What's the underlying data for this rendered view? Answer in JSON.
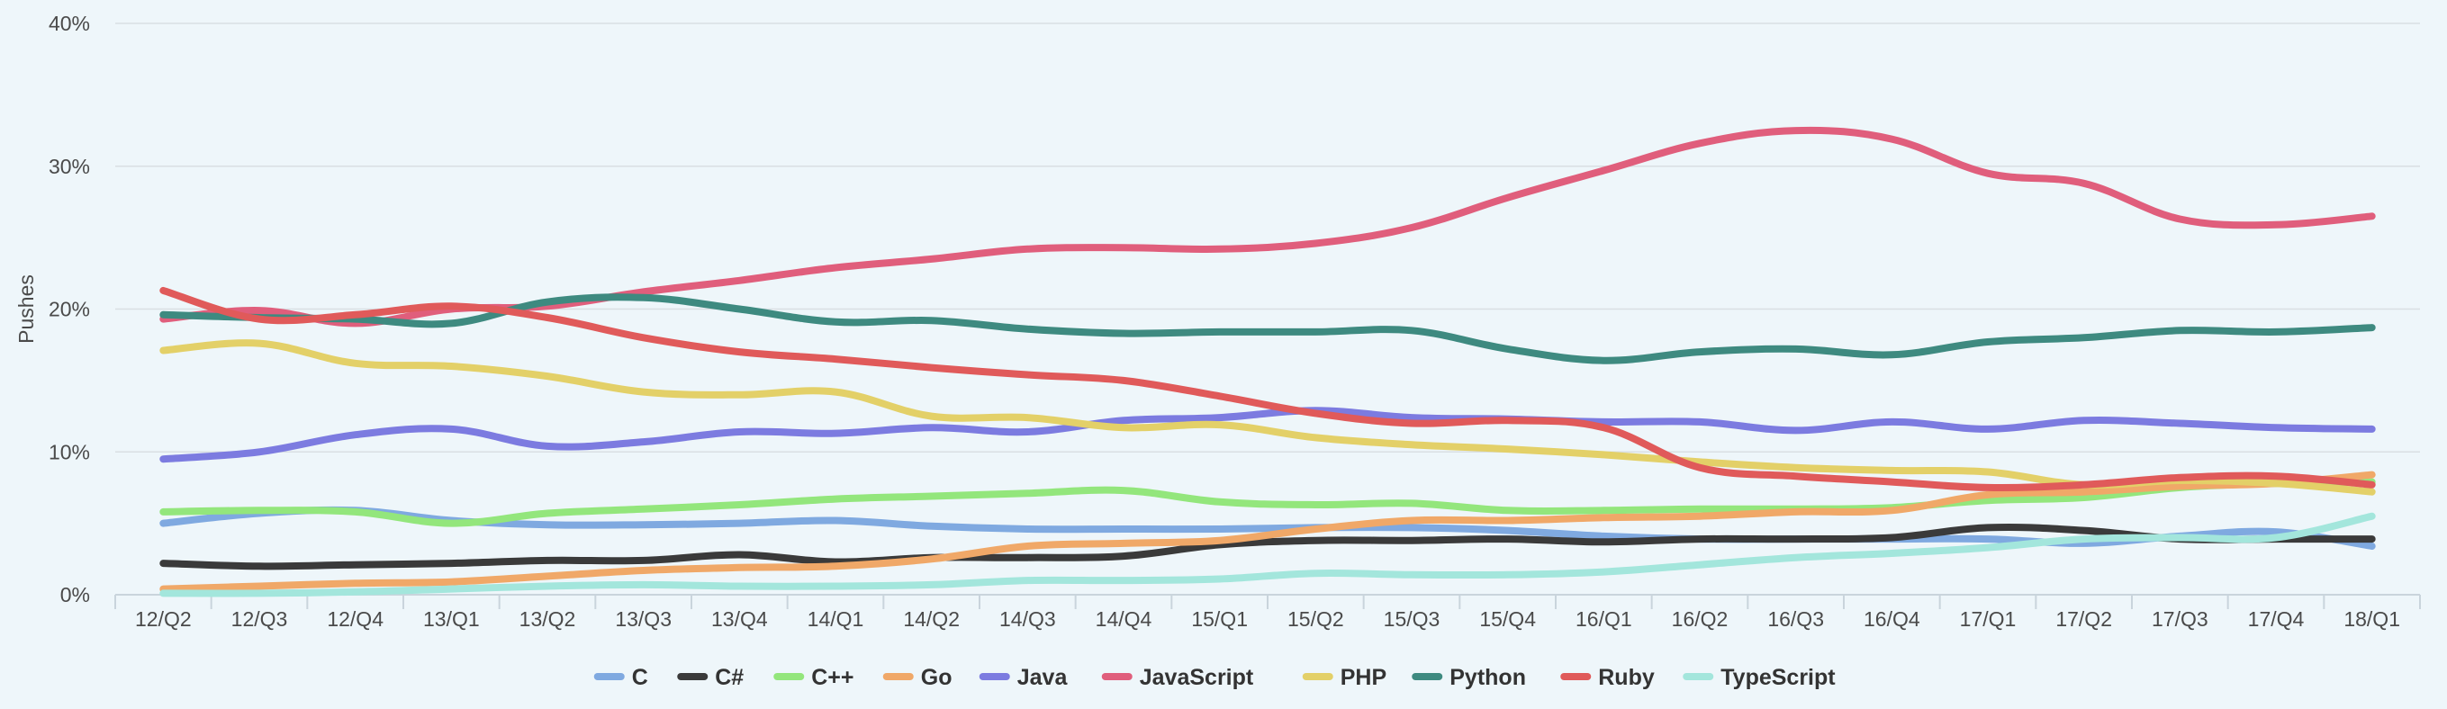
{
  "chart_data": {
    "type": "line",
    "title": "",
    "xlabel": "",
    "ylabel": "Pushes",
    "ylim": [
      0,
      40
    ],
    "yticks": [
      "0%",
      "10%",
      "20%",
      "30%",
      "40%"
    ],
    "grid": true,
    "legend_position": "bottom",
    "categories": [
      "12/Q2",
      "12/Q3",
      "12/Q4",
      "13/Q1",
      "13/Q2",
      "13/Q3",
      "13/Q4",
      "14/Q1",
      "14/Q2",
      "14/Q3",
      "14/Q4",
      "15/Q1",
      "15/Q2",
      "15/Q3",
      "15/Q4",
      "16/Q1",
      "16/Q2",
      "16/Q3",
      "16/Q4",
      "17/Q1",
      "17/Q2",
      "17/Q3",
      "17/Q4",
      "18/Q1"
    ],
    "series": [
      {
        "name": "C",
        "color": "#7fa9e0",
        "values": [
          5.0,
          5.7,
          5.9,
          5.2,
          4.9,
          4.9,
          5.0,
          5.2,
          4.8,
          4.6,
          4.6,
          4.6,
          4.7,
          4.7,
          4.5,
          4.1,
          3.9,
          3.9,
          3.9,
          3.9,
          3.6,
          4.1,
          4.4,
          3.4
        ]
      },
      {
        "name": "C#",
        "color": "#3a3a3a",
        "values": [
          2.2,
          2.0,
          2.1,
          2.2,
          2.4,
          2.4,
          2.8,
          2.3,
          2.6,
          2.6,
          2.7,
          3.5,
          3.8,
          3.8,
          3.9,
          3.7,
          3.9,
          3.9,
          4.0,
          4.7,
          4.5,
          3.9,
          3.9,
          3.9
        ]
      },
      {
        "name": "C++",
        "color": "#93e67c",
        "values": [
          5.8,
          5.9,
          5.8,
          5.0,
          5.7,
          6.0,
          6.3,
          6.7,
          6.9,
          7.1,
          7.3,
          6.5,
          6.3,
          6.4,
          5.9,
          5.9,
          6.0,
          6.0,
          6.1,
          6.6,
          6.8,
          7.5,
          7.8,
          7.9
        ]
      },
      {
        "name": "Go",
        "color": "#f0a868",
        "values": [
          0.4,
          0.6,
          0.8,
          0.9,
          1.3,
          1.7,
          1.9,
          2.0,
          2.5,
          3.4,
          3.6,
          3.8,
          4.6,
          5.2,
          5.2,
          5.4,
          5.5,
          5.8,
          5.9,
          7.0,
          7.2,
          7.6,
          7.8,
          8.4
        ]
      },
      {
        "name": "Java",
        "color": "#7c7be0",
        "values": [
          9.5,
          10.0,
          11.2,
          11.6,
          10.4,
          10.7,
          11.4,
          11.3,
          11.7,
          11.4,
          12.2,
          12.4,
          12.9,
          12.4,
          12.3,
          12.1,
          12.1,
          11.5,
          12.1,
          11.6,
          12.2,
          12.0,
          11.7,
          11.6
        ]
      },
      {
        "name": "JavaScript",
        "color": "#e05e7c",
        "values": [
          19.3,
          19.9,
          19.0,
          20.0,
          20.2,
          21.2,
          22.0,
          22.9,
          23.5,
          24.2,
          24.3,
          24.2,
          24.6,
          25.7,
          27.8,
          29.7,
          31.6,
          32.5,
          31.9,
          29.5,
          28.8,
          26.3,
          25.9,
          26.5
        ]
      },
      {
        "name": "PHP",
        "color": "#e3d068",
        "values": [
          17.1,
          17.6,
          16.2,
          16.0,
          15.3,
          14.2,
          14.0,
          14.2,
          12.5,
          12.4,
          11.7,
          11.9,
          11.0,
          10.5,
          10.2,
          9.8,
          9.3,
          8.9,
          8.7,
          8.6,
          7.7,
          8.0,
          7.8,
          7.2
        ]
      },
      {
        "name": "Python",
        "color": "#3e8a80",
        "values": [
          19.6,
          19.4,
          19.3,
          19.0,
          20.5,
          20.8,
          20.0,
          19.1,
          19.2,
          18.6,
          18.3,
          18.4,
          18.4,
          18.5,
          17.2,
          16.4,
          17.0,
          17.2,
          16.8,
          17.7,
          18.0,
          18.5,
          18.4,
          18.7
        ]
      },
      {
        "name": "Ruby",
        "color": "#e05a5a",
        "values": [
          21.3,
          19.3,
          19.6,
          20.2,
          19.4,
          18.0,
          17.0,
          16.5,
          15.9,
          15.4,
          15.0,
          13.9,
          12.7,
          12.0,
          12.2,
          11.7,
          8.9,
          8.3,
          7.9,
          7.5,
          7.7,
          8.2,
          8.3,
          7.7
        ]
      },
      {
        "name": "TypeScript",
        "color": "#a3e6dc",
        "values": [
          0.1,
          0.1,
          0.2,
          0.4,
          0.6,
          0.7,
          0.6,
          0.6,
          0.7,
          1.0,
          1.0,
          1.1,
          1.5,
          1.4,
          1.4,
          1.6,
          2.1,
          2.6,
          2.9,
          3.3,
          3.9,
          4.0,
          4.0,
          5.5
        ]
      }
    ]
  }
}
